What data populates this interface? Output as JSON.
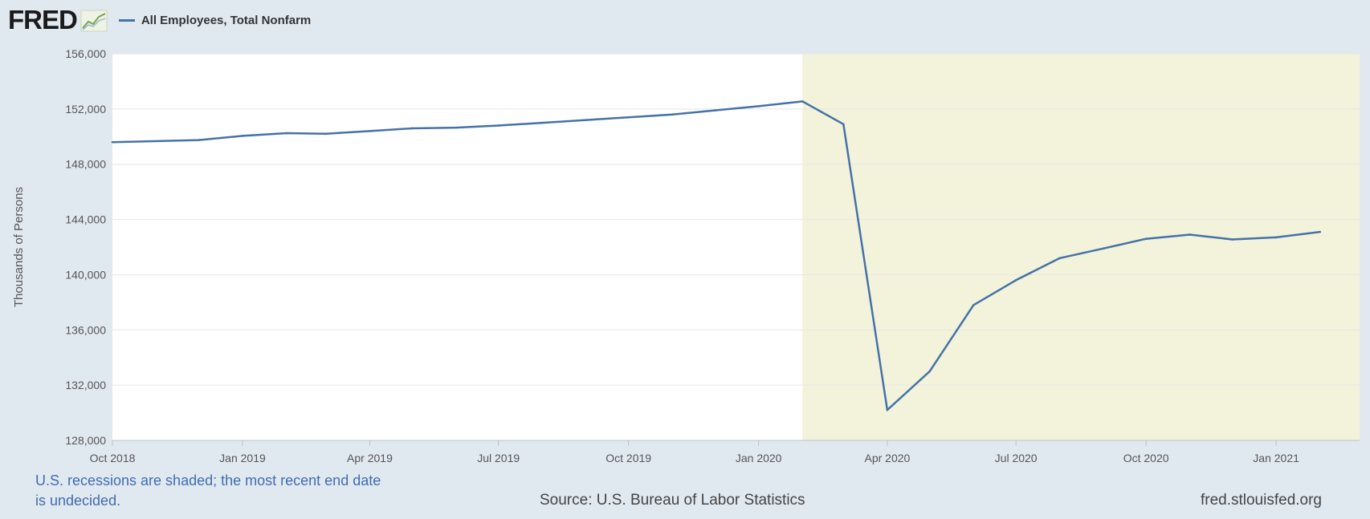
{
  "header": {
    "logo_text": "FRED",
    "logo_icon": "line-chart-icon",
    "series_label": "All Employees, Total Nonfarm"
  },
  "colors": {
    "line": "#4572a7",
    "recession_band": "#f3f3dc",
    "plot_bg": "#ffffff",
    "page_bg": "#e1e9f0",
    "gridline": "#e6e6e6",
    "note_text": "#3f6cb2"
  },
  "chart_data": {
    "type": "line",
    "title": "",
    "ylabel": "Thousands of Persons",
    "xlabel": "",
    "ylim": [
      128000,
      156000
    ],
    "yticks": [
      128000,
      132000,
      136000,
      140000,
      144000,
      148000,
      152000,
      156000
    ],
    "ytick_labels": [
      "128,000",
      "132,000",
      "136,000",
      "140,000",
      "144,000",
      "148,000",
      "152,000",
      "156,000"
    ],
    "xlim": [
      "2018-10-01",
      "2021-03-01"
    ],
    "xticks": [
      {
        "date": "2018-10-01",
        "label": "Oct 2018"
      },
      {
        "date": "2019-01-01",
        "label": "Jan 2019"
      },
      {
        "date": "2019-04-01",
        "label": "Apr 2019"
      },
      {
        "date": "2019-07-01",
        "label": "Jul 2019"
      },
      {
        "date": "2019-10-01",
        "label": "Oct 2019"
      },
      {
        "date": "2020-01-01",
        "label": "Jan 2020"
      },
      {
        "date": "2020-04-01",
        "label": "Apr 2020"
      },
      {
        "date": "2020-07-01",
        "label": "Jul 2020"
      },
      {
        "date": "2020-10-01",
        "label": "Oct 2020"
      },
      {
        "date": "2021-01-01",
        "label": "Jan 2021"
      }
    ],
    "grid": true,
    "recession_shading": {
      "start": "2020-02-01",
      "end": "2021-03-01"
    },
    "series": [
      {
        "name": "All Employees, Total Nonfarm",
        "points": [
          {
            "date": "2018-10-01",
            "value": 149600
          },
          {
            "date": "2018-12-01",
            "value": 149750
          },
          {
            "date": "2019-01-01",
            "value": 150050
          },
          {
            "date": "2019-02-01",
            "value": 150250
          },
          {
            "date": "2019-03-01",
            "value": 150200
          },
          {
            "date": "2019-04-01",
            "value": 150400
          },
          {
            "date": "2019-05-01",
            "value": 150600
          },
          {
            "date": "2019-06-01",
            "value": 150650
          },
          {
            "date": "2019-07-01",
            "value": 150800
          },
          {
            "date": "2019-08-01",
            "value": 151000
          },
          {
            "date": "2019-09-01",
            "value": 151200
          },
          {
            "date": "2019-10-01",
            "value": 151400
          },
          {
            "date": "2019-11-01",
            "value": 151600
          },
          {
            "date": "2019-12-01",
            "value": 151900
          },
          {
            "date": "2020-01-01",
            "value": 152200
          },
          {
            "date": "2020-02-01",
            "value": 152550
          },
          {
            "date": "2020-03-01",
            "value": 150900
          },
          {
            "date": "2020-04-01",
            "value": 130200
          },
          {
            "date": "2020-05-01",
            "value": 133000
          },
          {
            "date": "2020-06-01",
            "value": 137800
          },
          {
            "date": "2020-07-01",
            "value": 139600
          },
          {
            "date": "2020-08-01",
            "value": 141200
          },
          {
            "date": "2020-09-01",
            "value": 141900
          },
          {
            "date": "2020-10-01",
            "value": 142600
          },
          {
            "date": "2020-11-01",
            "value": 142900
          },
          {
            "date": "2020-12-01",
            "value": 142550
          },
          {
            "date": "2021-01-01",
            "value": 142700
          },
          {
            "date": "2021-02-01",
            "value": 143100
          }
        ]
      }
    ]
  },
  "footer": {
    "recession_note": "U.S. recessions are shaded; the most recent end date is undecided.",
    "source": "Source: U.S. Bureau of Labor Statistics",
    "site": "fred.stlouisfed.org"
  }
}
